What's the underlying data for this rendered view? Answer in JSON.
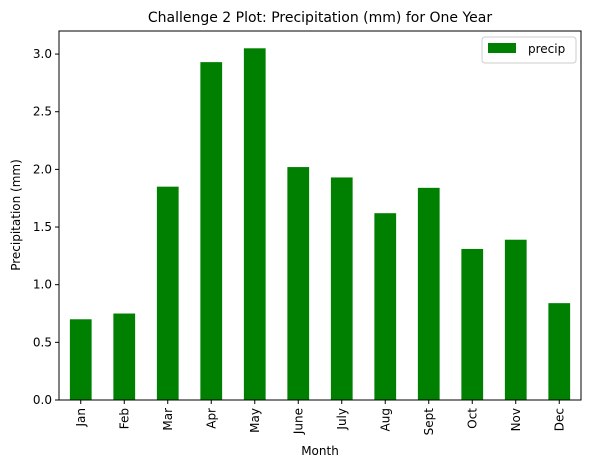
{
  "chart_data": {
    "type": "bar",
    "title": "Challenge 2 Plot: Precipitation (mm) for One Year",
    "xlabel": "Month",
    "ylabel": "Precipitation (mm)",
    "categories": [
      "Jan",
      "Feb",
      "Mar",
      "Apr",
      "May",
      "June",
      "July",
      "Aug",
      "Sept",
      "Oct",
      "Nov",
      "Dec"
    ],
    "series": [
      {
        "name": "precip",
        "color": "#008000",
        "values": [
          0.7,
          0.75,
          1.85,
          2.93,
          3.05,
          2.02,
          1.93,
          1.62,
          1.84,
          1.31,
          1.39,
          0.84
        ]
      }
    ],
    "ylim": [
      0,
      3.2
    ],
    "yticks": [
      0.0,
      0.5,
      1.0,
      1.5,
      2.0,
      2.5,
      3.0
    ],
    "ytick_labels": [
      "0.0",
      "0.5",
      "1.0",
      "1.5",
      "2.0",
      "2.5",
      "3.0"
    ],
    "grid": false,
    "legend": "top-right"
  }
}
